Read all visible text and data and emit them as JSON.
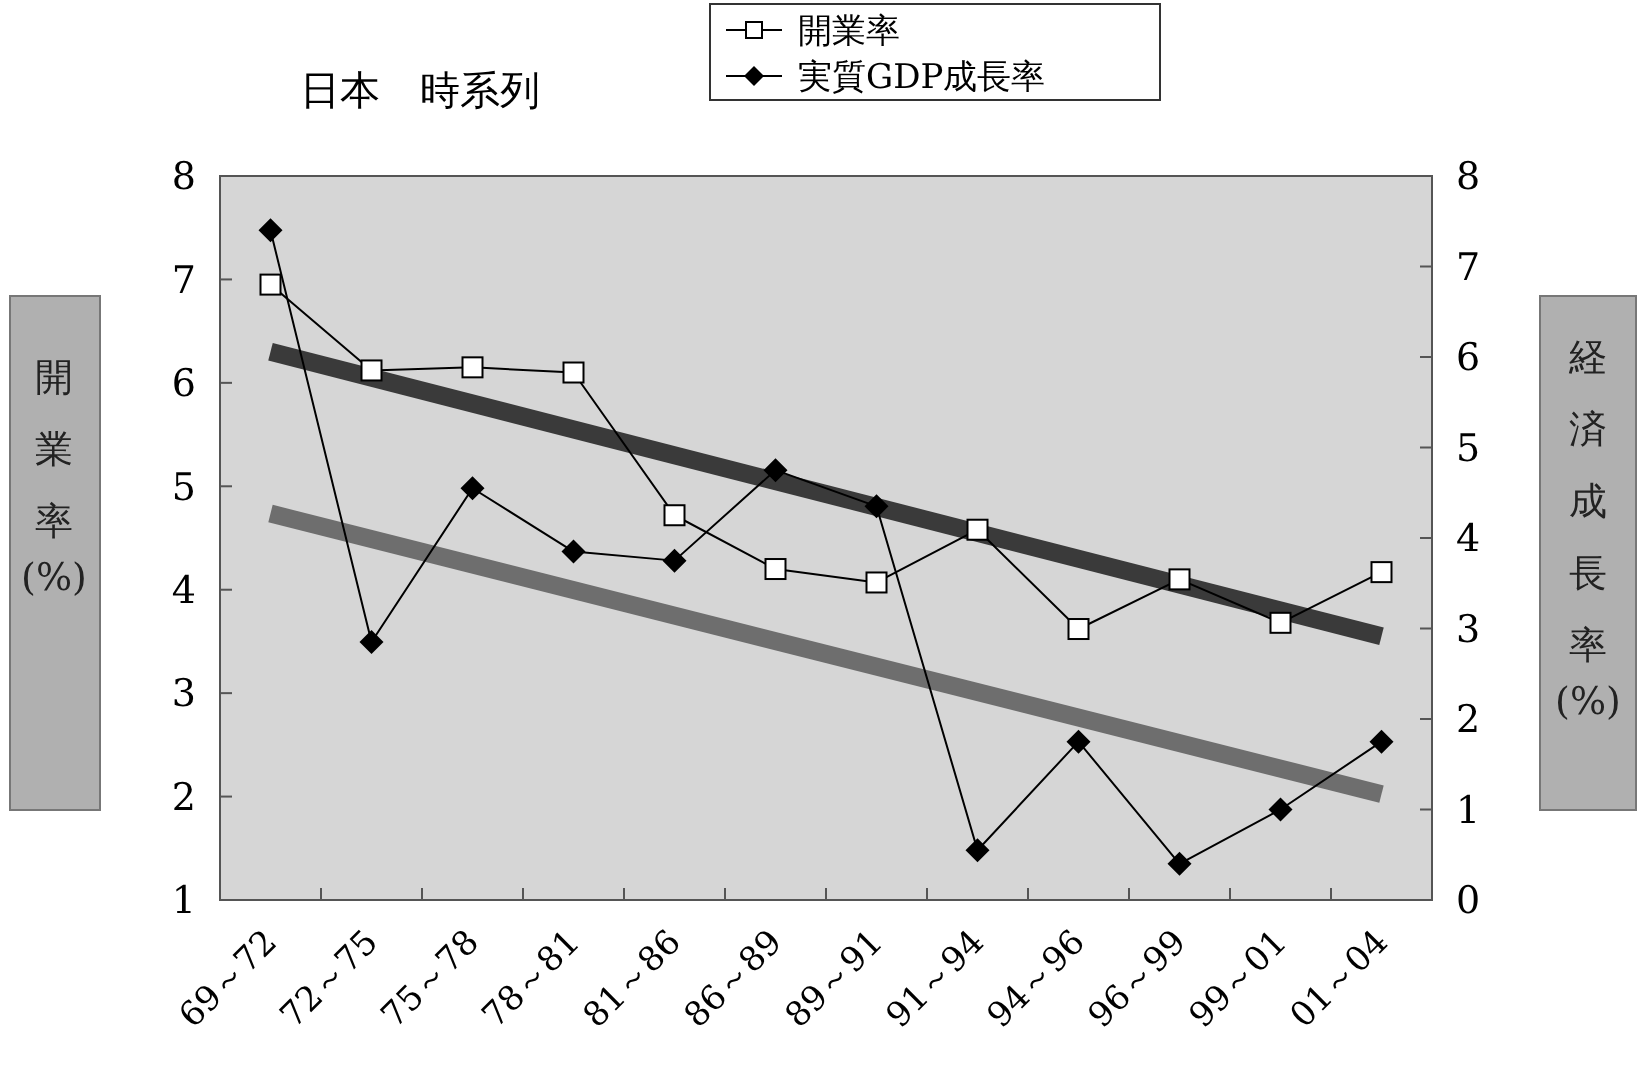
{
  "chart_data": {
    "type": "line",
    "title": "日本　時系列",
    "ylabel": "開業率(%)",
    "y2label": "経済成長率(%)",
    "categories": [
      "69～72",
      "72～75",
      "75～78",
      "78～81",
      "81～86",
      "86～89",
      "89～91",
      "91～94",
      "94～96",
      "96～99",
      "99～01",
      "01～04"
    ],
    "series": [
      {
        "name": "開業率",
        "color": "#000000",
        "marker": "square",
        "values": [
          6.95,
          6.12,
          6.15,
          6.1,
          4.72,
          4.2,
          4.07,
          4.58,
          3.62,
          4.1,
          3.68,
          4.17
        ]
      },
      {
        "name": "実質GDP成長率",
        "color": "#000000",
        "marker": "diamond",
        "axis": "y2",
        "values": [
          7.4,
          2.85,
          4.55,
          3.85,
          3.75,
          4.75,
          4.35,
          0.55,
          1.75,
          0.4,
          1.0,
          1.75
        ]
      },
      {
        "color": "#3a3a3a",
        "x": [
          "69～72",
          "01～04"
        ],
        "values": [
          6.3,
          3.55
        ]
      },
      {
        "color": "#6e6e6e",
        "axis": "y2",
        "x": [
          "69～72",
          "01～04"
        ],
        "values": [
          4.27,
          1.17
        ]
      }
    ],
    "ylim": [
      1,
      8
    ],
    "yticks": [
      1,
      2,
      3,
      4,
      5,
      6,
      7,
      8
    ],
    "y2lim": [
      0,
      8
    ],
    "y2ticks": [
      0,
      1,
      2,
      3,
      4,
      5,
      6,
      7,
      8
    ],
    "grid": false,
    "legend": "top"
  }
}
